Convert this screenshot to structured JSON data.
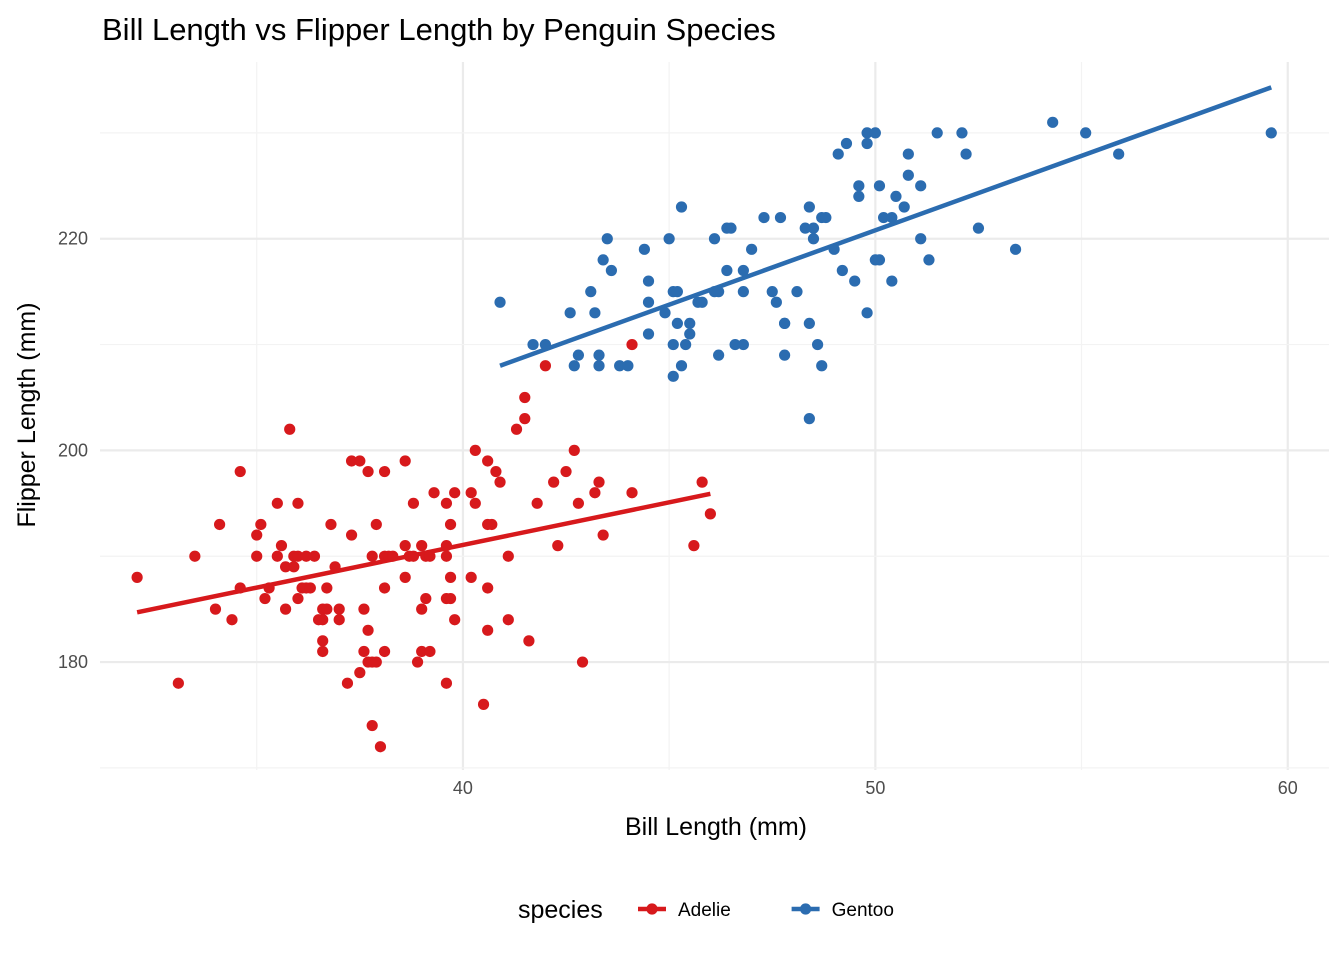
{
  "chart_data": {
    "type": "scatter",
    "title": "Bill Length vs Flipper Length by Penguin Species",
    "xlabel": "Bill Length (mm)",
    "ylabel": "Flipper Length (mm)",
    "xlim": [
      31.2,
      61.0
    ],
    "ylim": [
      169.8,
      236.7
    ],
    "x_ticks": [
      40,
      50,
      60
    ],
    "y_ticks": [
      180,
      200,
      220
    ],
    "grid": true,
    "legend": {
      "title": "species",
      "position": "bottom"
    },
    "series": [
      {
        "name": "Adelie",
        "color": "#d7191c",
        "trend": {
          "x": [
            32.1,
            46.0
          ],
          "y": [
            184.7,
            195.9
          ]
        },
        "points": [
          [
            32.1,
            188
          ],
          [
            33.1,
            178
          ],
          [
            33.5,
            190
          ],
          [
            34.0,
            185
          ],
          [
            34.1,
            193
          ],
          [
            34.4,
            184
          ],
          [
            34.6,
            187
          ],
          [
            34.6,
            198
          ],
          [
            35.0,
            190
          ],
          [
            35.0,
            192
          ],
          [
            35.1,
            193
          ],
          [
            35.2,
            186
          ],
          [
            35.3,
            187
          ],
          [
            35.5,
            195
          ],
          [
            35.5,
            190
          ],
          [
            35.6,
            191
          ],
          [
            35.7,
            185
          ],
          [
            35.7,
            189
          ],
          [
            35.8,
            202
          ],
          [
            35.9,
            190
          ],
          [
            35.9,
            189
          ],
          [
            36.0,
            190
          ],
          [
            36.0,
            195
          ],
          [
            36.0,
            186
          ],
          [
            36.1,
            187
          ],
          [
            36.2,
            187
          ],
          [
            36.2,
            190
          ],
          [
            36.3,
            187
          ],
          [
            36.4,
            190
          ],
          [
            36.5,
            184
          ],
          [
            36.6,
            185
          ],
          [
            36.6,
            184
          ],
          [
            36.6,
            181
          ],
          [
            36.6,
            182
          ],
          [
            36.7,
            185
          ],
          [
            36.7,
            187
          ],
          [
            36.8,
            193
          ],
          [
            36.9,
            189
          ],
          [
            37.0,
            185
          ],
          [
            37.0,
            184
          ],
          [
            37.2,
            178
          ],
          [
            37.3,
            199
          ],
          [
            37.3,
            192
          ],
          [
            37.5,
            199
          ],
          [
            37.5,
            179
          ],
          [
            37.6,
            185
          ],
          [
            37.6,
            181
          ],
          [
            37.7,
            180
          ],
          [
            37.7,
            183
          ],
          [
            37.7,
            198
          ],
          [
            37.8,
            180
          ],
          [
            37.8,
            190
          ],
          [
            37.8,
            174
          ],
          [
            37.9,
            193
          ],
          [
            37.9,
            180
          ],
          [
            38.0,
            172
          ],
          [
            38.1,
            190
          ],
          [
            38.1,
            187
          ],
          [
            38.1,
            181
          ],
          [
            38.1,
            198
          ],
          [
            38.2,
            190
          ],
          [
            38.3,
            190
          ],
          [
            38.6,
            188
          ],
          [
            38.6,
            199
          ],
          [
            38.6,
            191
          ],
          [
            38.7,
            190
          ],
          [
            38.8,
            195
          ],
          [
            38.8,
            190
          ],
          [
            38.9,
            180
          ],
          [
            39.0,
            191
          ],
          [
            39.0,
            181
          ],
          [
            39.0,
            185
          ],
          [
            39.1,
            190
          ],
          [
            39.1,
            186
          ],
          [
            39.2,
            190
          ],
          [
            39.2,
            181
          ],
          [
            39.3,
            196
          ],
          [
            39.6,
            195
          ],
          [
            39.6,
            190
          ],
          [
            39.6,
            191
          ],
          [
            39.6,
            186
          ],
          [
            39.6,
            178
          ],
          [
            39.7,
            188
          ],
          [
            39.7,
            186
          ],
          [
            39.7,
            193
          ],
          [
            39.8,
            196
          ],
          [
            39.8,
            184
          ],
          [
            40.2,
            196
          ],
          [
            40.2,
            188
          ],
          [
            40.3,
            200
          ],
          [
            40.3,
            195
          ],
          [
            40.5,
            176
          ],
          [
            40.6,
            199
          ],
          [
            40.6,
            193
          ],
          [
            40.6,
            187
          ],
          [
            40.6,
            183
          ],
          [
            40.7,
            193
          ],
          [
            40.8,
            198
          ],
          [
            40.9,
            197
          ],
          [
            41.1,
            184
          ],
          [
            41.1,
            190
          ],
          [
            41.3,
            202
          ],
          [
            41.5,
            203
          ],
          [
            41.5,
            205
          ],
          [
            41.6,
            182
          ],
          [
            41.8,
            195
          ],
          [
            42.0,
            208
          ],
          [
            42.2,
            197
          ],
          [
            42.3,
            191
          ],
          [
            42.5,
            198
          ],
          [
            42.7,
            200
          ],
          [
            42.8,
            195
          ],
          [
            42.9,
            180
          ],
          [
            43.2,
            196
          ],
          [
            43.3,
            197
          ],
          [
            43.4,
            192
          ],
          [
            44.1,
            196
          ],
          [
            44.1,
            210
          ],
          [
            45.6,
            191
          ],
          [
            45.8,
            197
          ],
          [
            46.0,
            194
          ]
        ]
      },
      {
        "name": "Gentoo",
        "color": "#2b6cb0",
        "trend": {
          "x": [
            40.9,
            59.6
          ],
          "y": [
            208.0,
            234.3
          ]
        },
        "points": [
          [
            40.9,
            214
          ],
          [
            41.7,
            210
          ],
          [
            42.0,
            210
          ],
          [
            42.6,
            213
          ],
          [
            42.7,
            208
          ],
          [
            42.8,
            209
          ],
          [
            43.1,
            215
          ],
          [
            43.2,
            213
          ],
          [
            43.3,
            209
          ],
          [
            43.3,
            208
          ],
          [
            43.4,
            218
          ],
          [
            43.5,
            220
          ],
          [
            43.6,
            217
          ],
          [
            43.8,
            208
          ],
          [
            44.0,
            208
          ],
          [
            44.4,
            219
          ],
          [
            44.5,
            216
          ],
          [
            44.5,
            214
          ],
          [
            44.9,
            213
          ],
          [
            45.0,
            220
          ],
          [
            45.1,
            215
          ],
          [
            45.1,
            210
          ],
          [
            45.2,
            212
          ],
          [
            45.2,
            215
          ],
          [
            45.3,
            208
          ],
          [
            45.3,
            223
          ],
          [
            45.4,
            210
          ],
          [
            45.5,
            211
          ],
          [
            45.5,
            212
          ],
          [
            45.7,
            214
          ],
          [
            45.8,
            214
          ],
          [
            46.1,
            220
          ],
          [
            46.2,
            215
          ],
          [
            46.2,
            209
          ],
          [
            46.4,
            221
          ],
          [
            46.4,
            217
          ],
          [
            46.5,
            221
          ],
          [
            46.6,
            210
          ],
          [
            46.8,
            210
          ],
          [
            46.8,
            215
          ],
          [
            46.8,
            217
          ],
          [
            47.0,
            219
          ],
          [
            47.3,
            222
          ],
          [
            47.5,
            215
          ],
          [
            47.6,
            214
          ],
          [
            47.7,
            222
          ],
          [
            47.8,
            212
          ],
          [
            47.8,
            212
          ],
          [
            47.8,
            209
          ],
          [
            48.1,
            215
          ],
          [
            48.4,
            212
          ],
          [
            48.5,
            220
          ],
          [
            48.5,
            221
          ],
          [
            48.6,
            210
          ],
          [
            48.7,
            222
          ],
          [
            48.8,
            222
          ],
          [
            49.0,
            219
          ],
          [
            49.1,
            228
          ],
          [
            49.2,
            217
          ],
          [
            49.3,
            229
          ],
          [
            49.6,
            225
          ],
          [
            49.6,
            224
          ],
          [
            49.8,
            229
          ],
          [
            49.8,
            230
          ],
          [
            50.0,
            230
          ],
          [
            50.1,
            225
          ],
          [
            50.2,
            222
          ],
          [
            50.4,
            222
          ],
          [
            50.5,
            224
          ],
          [
            50.7,
            223
          ],
          [
            50.8,
            226
          ],
          [
            50.8,
            228
          ],
          [
            51.1,
            220
          ],
          [
            51.1,
            225
          ],
          [
            51.3,
            218
          ],
          [
            51.5,
            230
          ],
          [
            52.1,
            230
          ],
          [
            52.2,
            228
          ],
          [
            52.5,
            221
          ],
          [
            53.4,
            219
          ],
          [
            54.3,
            231
          ],
          [
            55.1,
            230
          ],
          [
            55.9,
            228
          ],
          [
            59.6,
            230
          ],
          [
            48.4,
            203
          ],
          [
            48.4,
            223
          ],
          [
            48.3,
            221
          ],
          [
            48.7,
            208
          ],
          [
            49.5,
            216
          ],
          [
            49.8,
            213
          ],
          [
            50.0,
            218
          ],
          [
            50.4,
            216
          ],
          [
            50.1,
            218
          ],
          [
            46.1,
            215
          ],
          [
            44.5,
            211
          ],
          [
            45.1,
            207
          ]
        ]
      }
    ]
  }
}
